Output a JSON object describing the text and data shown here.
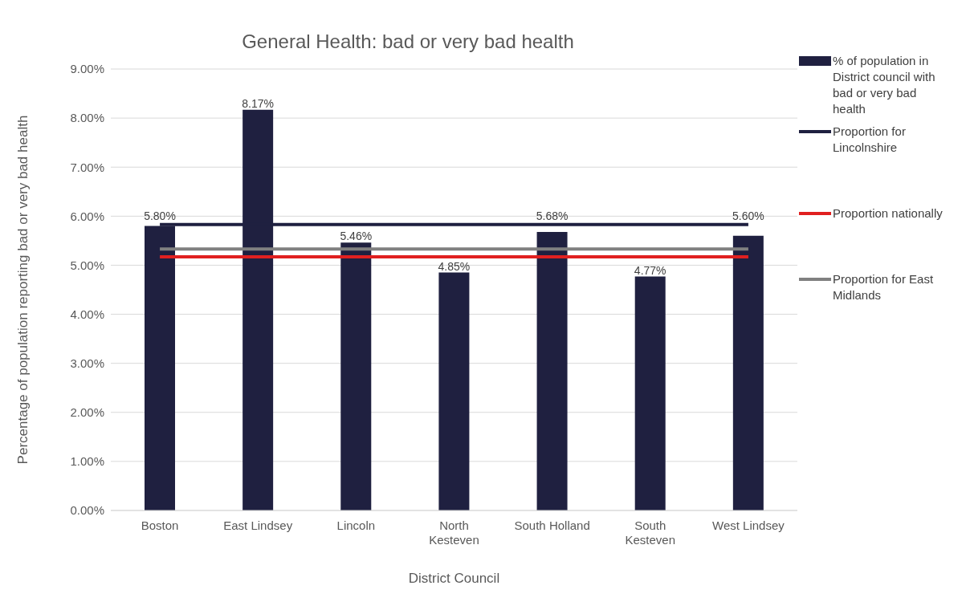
{
  "chart_data": {
    "type": "bar",
    "title": "General Health: bad or very bad health",
    "xlabel": "District Council",
    "ylabel": "Percentage of population reporting bad or very bad health",
    "categories": [
      "Boston",
      "East Lindsey",
      "Lincoln",
      "North Kesteven",
      "South Holland",
      "South Kesteven",
      "West Lindsey"
    ],
    "series": [
      {
        "name": "% of population in District council with bad or very bad health",
        "color": "#1f2040",
        "values": [
          5.8,
          8.17,
          5.46,
          4.85,
          5.68,
          4.77,
          5.6
        ],
        "value_labels": [
          "5.80%",
          "8.17%",
          "5.46%",
          "4.85%",
          "5.68%",
          "4.77%",
          "5.60%"
        ]
      },
      {
        "name": "Proportion for Lincolnshire",
        "type": "line",
        "color": "#1f2040",
        "values": [
          5.83,
          5.83,
          5.83,
          5.83,
          5.83,
          5.83,
          5.83
        ]
      },
      {
        "name": "Proportion nationally",
        "type": "line",
        "color": "#e02020",
        "values": [
          5.17,
          5.17,
          5.17,
          5.17,
          5.17,
          5.17,
          5.17
        ]
      },
      {
        "name": "Proportion for East Midlands",
        "type": "line",
        "color": "#808080",
        "values": [
          5.33,
          5.33,
          5.33,
          5.33,
          5.33,
          5.33,
          5.33
        ]
      }
    ],
    "ylim": [
      0,
      9
    ],
    "yticks": [
      {
        "value": 0,
        "label": "0.00%"
      },
      {
        "value": 1,
        "label": "1.00%"
      },
      {
        "value": 2,
        "label": "2.00%"
      },
      {
        "value": 3,
        "label": "3.00%"
      },
      {
        "value": 4,
        "label": "4.00%"
      },
      {
        "value": 5,
        "label": "5.00%"
      },
      {
        "value": 6,
        "label": "6.00%"
      },
      {
        "value": 7,
        "label": "7.00%"
      },
      {
        "value": 8,
        "label": "8.00%"
      },
      {
        "value": 9,
        "label": "9.00%"
      }
    ],
    "grid": "y",
    "legend": "right",
    "marker": "none",
    "line_style": "solid"
  }
}
